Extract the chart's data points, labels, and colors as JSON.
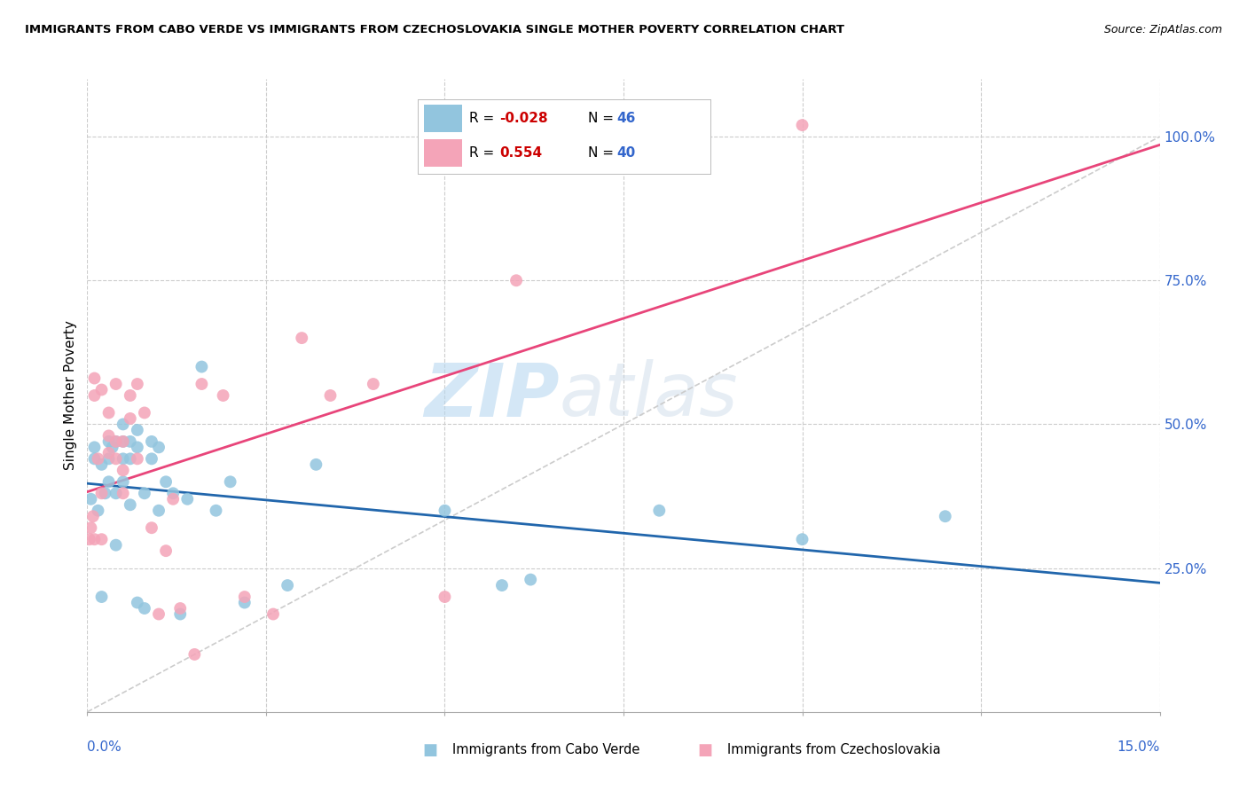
{
  "title": "IMMIGRANTS FROM CABO VERDE VS IMMIGRANTS FROM CZECHOSLOVAKIA SINGLE MOTHER POVERTY CORRELATION CHART",
  "source": "Source: ZipAtlas.com",
  "ylabel": "Single Mother Poverty",
  "legend_cabo_verde": "Immigrants from Cabo Verde",
  "legend_czechoslovakia": "Immigrants from Czechoslovakia",
  "R_cabo_verde": "-0.028",
  "N_cabo_verde": "46",
  "R_czechoslovakia": "0.554",
  "N_czechoslovakia": "40",
  "color_blue": "#92c5de",
  "color_pink": "#f4a4b8",
  "color_blue_line": "#2166ac",
  "color_pink_line": "#e8457a",
  "color_dashed": "#c0c0c0",
  "watermark_zip": "ZIP",
  "watermark_atlas": "atlas",
  "cabo_verde_x": [
    0.0005,
    0.001,
    0.001,
    0.0015,
    0.002,
    0.002,
    0.0025,
    0.003,
    0.003,
    0.003,
    0.0035,
    0.004,
    0.004,
    0.004,
    0.005,
    0.005,
    0.005,
    0.005,
    0.006,
    0.006,
    0.006,
    0.007,
    0.007,
    0.007,
    0.008,
    0.008,
    0.009,
    0.009,
    0.01,
    0.01,
    0.011,
    0.012,
    0.013,
    0.014,
    0.016,
    0.018,
    0.02,
    0.022,
    0.028,
    0.032,
    0.05,
    0.058,
    0.062,
    0.08,
    0.1,
    0.12
  ],
  "cabo_verde_y": [
    0.37,
    0.44,
    0.46,
    0.35,
    0.2,
    0.43,
    0.38,
    0.4,
    0.44,
    0.47,
    0.46,
    0.38,
    0.29,
    0.47,
    0.4,
    0.44,
    0.5,
    0.47,
    0.44,
    0.47,
    0.36,
    0.49,
    0.46,
    0.19,
    0.18,
    0.38,
    0.44,
    0.47,
    0.35,
    0.46,
    0.4,
    0.38,
    0.17,
    0.37,
    0.6,
    0.35,
    0.4,
    0.19,
    0.22,
    0.43,
    0.35,
    0.22,
    0.23,
    0.35,
    0.3,
    0.34
  ],
  "czechoslovakia_x": [
    0.0003,
    0.0005,
    0.0008,
    0.001,
    0.001,
    0.001,
    0.0015,
    0.002,
    0.002,
    0.002,
    0.003,
    0.003,
    0.003,
    0.004,
    0.004,
    0.004,
    0.005,
    0.005,
    0.005,
    0.006,
    0.006,
    0.007,
    0.007,
    0.008,
    0.009,
    0.01,
    0.011,
    0.012,
    0.013,
    0.015,
    0.016,
    0.019,
    0.022,
    0.026,
    0.03,
    0.034,
    0.04,
    0.05,
    0.06,
    0.1
  ],
  "czechoslovakia_y": [
    0.3,
    0.32,
    0.34,
    0.3,
    0.55,
    0.58,
    0.44,
    0.3,
    0.38,
    0.56,
    0.45,
    0.48,
    0.52,
    0.44,
    0.47,
    0.57,
    0.38,
    0.42,
    0.47,
    0.51,
    0.55,
    0.44,
    0.57,
    0.52,
    0.32,
    0.17,
    0.28,
    0.37,
    0.18,
    0.1,
    0.57,
    0.55,
    0.2,
    0.17,
    0.65,
    0.55,
    0.57,
    0.2,
    0.75,
    1.02
  ],
  "xlim": [
    0.0,
    0.15
  ],
  "ylim": [
    0.0,
    1.1
  ],
  "y_ticks": [
    0.25,
    0.5,
    0.75,
    1.0
  ],
  "y_tick_labels": [
    "25.0%",
    "50.0%",
    "75.0%",
    "100.0%"
  ],
  "x_ticks": [
    0.0,
    0.025,
    0.05,
    0.075,
    0.1,
    0.125,
    0.15
  ],
  "figsize": [
    14.06,
    8.92
  ],
  "dpi": 100
}
